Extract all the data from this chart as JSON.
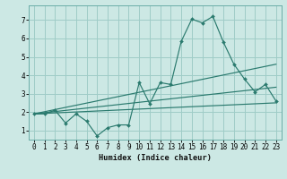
{
  "xlabel": "Humidex (Indice chaleur)",
  "bg_color": "#cce8e4",
  "grid_color": "#9fccc7",
  "line_color": "#2a7a6e",
  "xlim": [
    -0.5,
    23.5
  ],
  "ylim": [
    0.5,
    7.8
  ],
  "xticks": [
    0,
    1,
    2,
    3,
    4,
    5,
    6,
    7,
    8,
    9,
    10,
    11,
    12,
    13,
    14,
    15,
    16,
    17,
    18,
    19,
    20,
    21,
    22,
    23
  ],
  "yticks": [
    1,
    2,
    3,
    4,
    5,
    6,
    7
  ],
  "line1_x": [
    0,
    1,
    2,
    3,
    4,
    5,
    6,
    7,
    8,
    9,
    10,
    11,
    12,
    13,
    14,
    15,
    16,
    17,
    18,
    19,
    20,
    21,
    22,
    23
  ],
  "line1_y": [
    1.9,
    1.9,
    2.1,
    1.4,
    1.9,
    1.5,
    0.7,
    1.15,
    1.3,
    1.3,
    3.6,
    2.45,
    3.6,
    3.5,
    5.85,
    7.05,
    6.85,
    7.2,
    5.8,
    4.6,
    3.8,
    3.1,
    3.5,
    2.6
  ],
  "line2_x": [
    0,
    23
  ],
  "line2_y": [
    1.9,
    4.6
  ],
  "line3_x": [
    0,
    23
  ],
  "line3_y": [
    1.9,
    3.35
  ],
  "line4_x": [
    0,
    23
  ],
  "line4_y": [
    1.9,
    2.5
  ]
}
